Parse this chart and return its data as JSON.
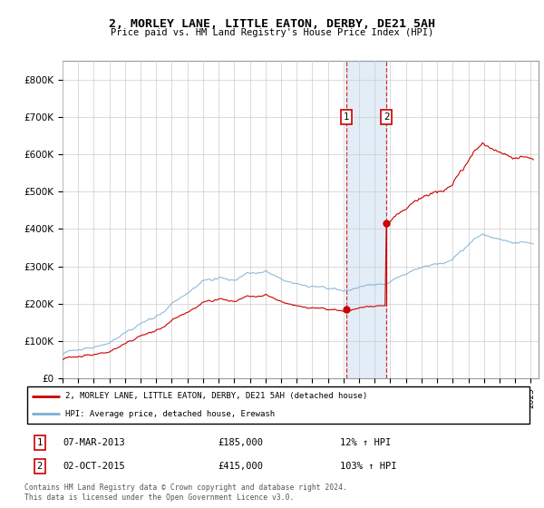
{
  "title": "2, MORLEY LANE, LITTLE EATON, DERBY, DE21 5AH",
  "subtitle": "Price paid vs. HM Land Registry's House Price Index (HPI)",
  "legend_line1": "2, MORLEY LANE, LITTLE EATON, DERBY, DE21 5AH (detached house)",
  "legend_line2": "HPI: Average price, detached house, Erewash",
  "transaction1_label": "1",
  "transaction1_date": "07-MAR-2013",
  "transaction1_price": "£185,000",
  "transaction1_pct": "12% ↑ HPI",
  "transaction2_label": "2",
  "transaction2_date": "02-OCT-2015",
  "transaction2_price": "£415,000",
  "transaction2_pct": "103% ↑ HPI",
  "footer": "Contains HM Land Registry data © Crown copyright and database right 2024.\nThis data is licensed under the Open Government Licence v3.0.",
  "hpi_color": "#7bafd4",
  "price_color": "#cc0000",
  "marker_color": "#cc0000",
  "annotation_box_color": "#cc0000",
  "shading_color": "#dce9f5",
  "ylim": [
    0,
    850000
  ],
  "yticks": [
    0,
    100000,
    200000,
    300000,
    400000,
    500000,
    600000,
    700000,
    800000
  ],
  "ytick_labels": [
    "£0",
    "£100K",
    "£200K",
    "£300K",
    "£400K",
    "£500K",
    "£600K",
    "£700K",
    "£800K"
  ],
  "transaction1_x": 2013.17,
  "transaction1_y": 185000,
  "transaction2_x": 2015.75,
  "transaction2_y": 415000,
  "xmin": 1995,
  "xmax": 2025.5
}
